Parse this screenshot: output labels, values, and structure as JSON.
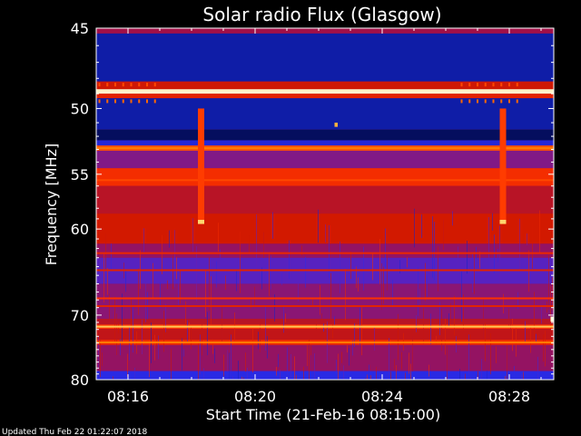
{
  "colors": {
    "background": "#000000",
    "foreground": "#ffffff",
    "colormap": [
      "#000018",
      "#0a1a9a",
      "#2a2ae6",
      "#6a1fb0",
      "#a0104c",
      "#d01800",
      "#ff3300",
      "#ff7a00",
      "#ffd060",
      "#ffffe8"
    ]
  },
  "chart_data": {
    "type": "heatmap",
    "title": "Solar radio Flux (Glasgow)",
    "xlabel": "Start Time (21-Feb-16 08:15:00)",
    "ylabel": "Frequency [MHz]",
    "x_ticks": [
      "08:16",
      "08:20",
      "08:24",
      "08:28"
    ],
    "x_tick_minutes": [
      1,
      5,
      9,
      13
    ],
    "xlim_minutes": [
      0,
      14.4
    ],
    "y_ticks": [
      45,
      50,
      55,
      60,
      70,
      80
    ],
    "y_scale": "reciprocal",
    "ylim": [
      45,
      80
    ],
    "channel_bands": [
      {
        "freq_from": 45,
        "freq_to": 45.3,
        "level": 0.45
      },
      {
        "freq_from": 45.3,
        "freq_to": 48.2,
        "level": 0.13
      },
      {
        "freq_from": 48.2,
        "freq_to": 48.7,
        "level": 0.55
      },
      {
        "freq_from": 48.7,
        "freq_to": 49.0,
        "level": 0.97
      },
      {
        "freq_from": 49.0,
        "freq_to": 49.3,
        "level": 0.6
      },
      {
        "freq_from": 49.3,
        "freq_to": 51.5,
        "level": 0.13
      },
      {
        "freq_from": 51.5,
        "freq_to": 52.3,
        "level": 0.06
      },
      {
        "freq_from": 52.3,
        "freq_to": 52.7,
        "level": 0.2
      },
      {
        "freq_from": 52.7,
        "freq_to": 53.1,
        "level": 0.72
      },
      {
        "freq_from": 53.1,
        "freq_to": 54.5,
        "level": 0.38
      },
      {
        "freq_from": 54.5,
        "freq_to": 56.0,
        "level": 0.64
      },
      {
        "freq_from": 56.0,
        "freq_to": 58.5,
        "level": 0.5
      },
      {
        "freq_from": 58.5,
        "freq_to": 61.5,
        "level": 0.56
      },
      {
        "freq_from": 61.5,
        "freq_to": 63.0,
        "level": 0.42
      },
      {
        "freq_from": 63.0,
        "freq_to": 66.0,
        "level": 0.3
      },
      {
        "freq_from": 66.0,
        "freq_to": 70.5,
        "level": 0.4
      },
      {
        "freq_from": 70.5,
        "freq_to": 71.3,
        "level": 0.5
      },
      {
        "freq_from": 71.3,
        "freq_to": 71.9,
        "level": 0.68
      },
      {
        "freq_from": 71.9,
        "freq_to": 73.5,
        "level": 0.52
      },
      {
        "freq_from": 73.5,
        "freq_to": 74.3,
        "level": 0.63
      },
      {
        "freq_from": 74.3,
        "freq_to": 78.5,
        "level": 0.42
      },
      {
        "freq_from": 78.5,
        "freq_to": 80,
        "level": 0.22
      }
    ],
    "striations": [
      {
        "freq": 48.9,
        "level": 0.98
      },
      {
        "freq": 52.9,
        "level": 0.78
      },
      {
        "freq": 55.5,
        "level": 0.7
      },
      {
        "freq": 62.5,
        "level": 0.62
      },
      {
        "freq": 64.4,
        "level": 0.6
      },
      {
        "freq": 67.8,
        "level": 0.66
      },
      {
        "freq": 68.8,
        "level": 0.6
      },
      {
        "freq": 71.6,
        "level": 0.88
      },
      {
        "freq": 73.9,
        "level": 0.78
      }
    ],
    "bursts": [
      {
        "minute_from": 3.2,
        "minute_to": 3.4,
        "freq_from": 50,
        "freq_to": 59.5,
        "level": 0.68
      },
      {
        "minute_from": 12.7,
        "minute_to": 12.9,
        "freq_from": 50,
        "freq_to": 59.5,
        "level": 0.68
      },
      {
        "minute_from": 3.2,
        "minute_to": 3.4,
        "freq_from": 59.1,
        "freq_to": 59.5,
        "level": 0.9
      },
      {
        "minute_from": 12.7,
        "minute_to": 12.9,
        "freq_from": 59.1,
        "freq_to": 59.5,
        "level": 0.9
      },
      {
        "minute_from": 7.5,
        "minute_to": 7.6,
        "freq_from": 51.0,
        "freq_to": 51.3,
        "level": 0.85
      },
      {
        "minute_from": 14.3,
        "minute_to": 14.4,
        "freq_from": 70.2,
        "freq_to": 70.9,
        "level": 0.99
      }
    ],
    "dot_rows": [
      {
        "freq": 49.5,
        "minutes": [
          0.1,
          0.35,
          0.6,
          0.85,
          1.1,
          1.35,
          1.6,
          1.85,
          11.5,
          11.75,
          12.0,
          12.25,
          12.5,
          12.75,
          13.0,
          13.25
        ],
        "level": 0.75
      },
      {
        "freq": 48.4,
        "minutes": [
          0.1,
          0.35,
          0.6,
          0.85,
          1.1,
          1.35,
          1.6,
          1.85,
          11.5,
          11.75,
          12.0,
          12.25,
          12.5,
          12.75,
          13.0,
          13.25
        ],
        "level": 0.7
      }
    ]
  },
  "footer": {
    "updated": "Updated Thu Feb 22 01:22:07 2018"
  }
}
